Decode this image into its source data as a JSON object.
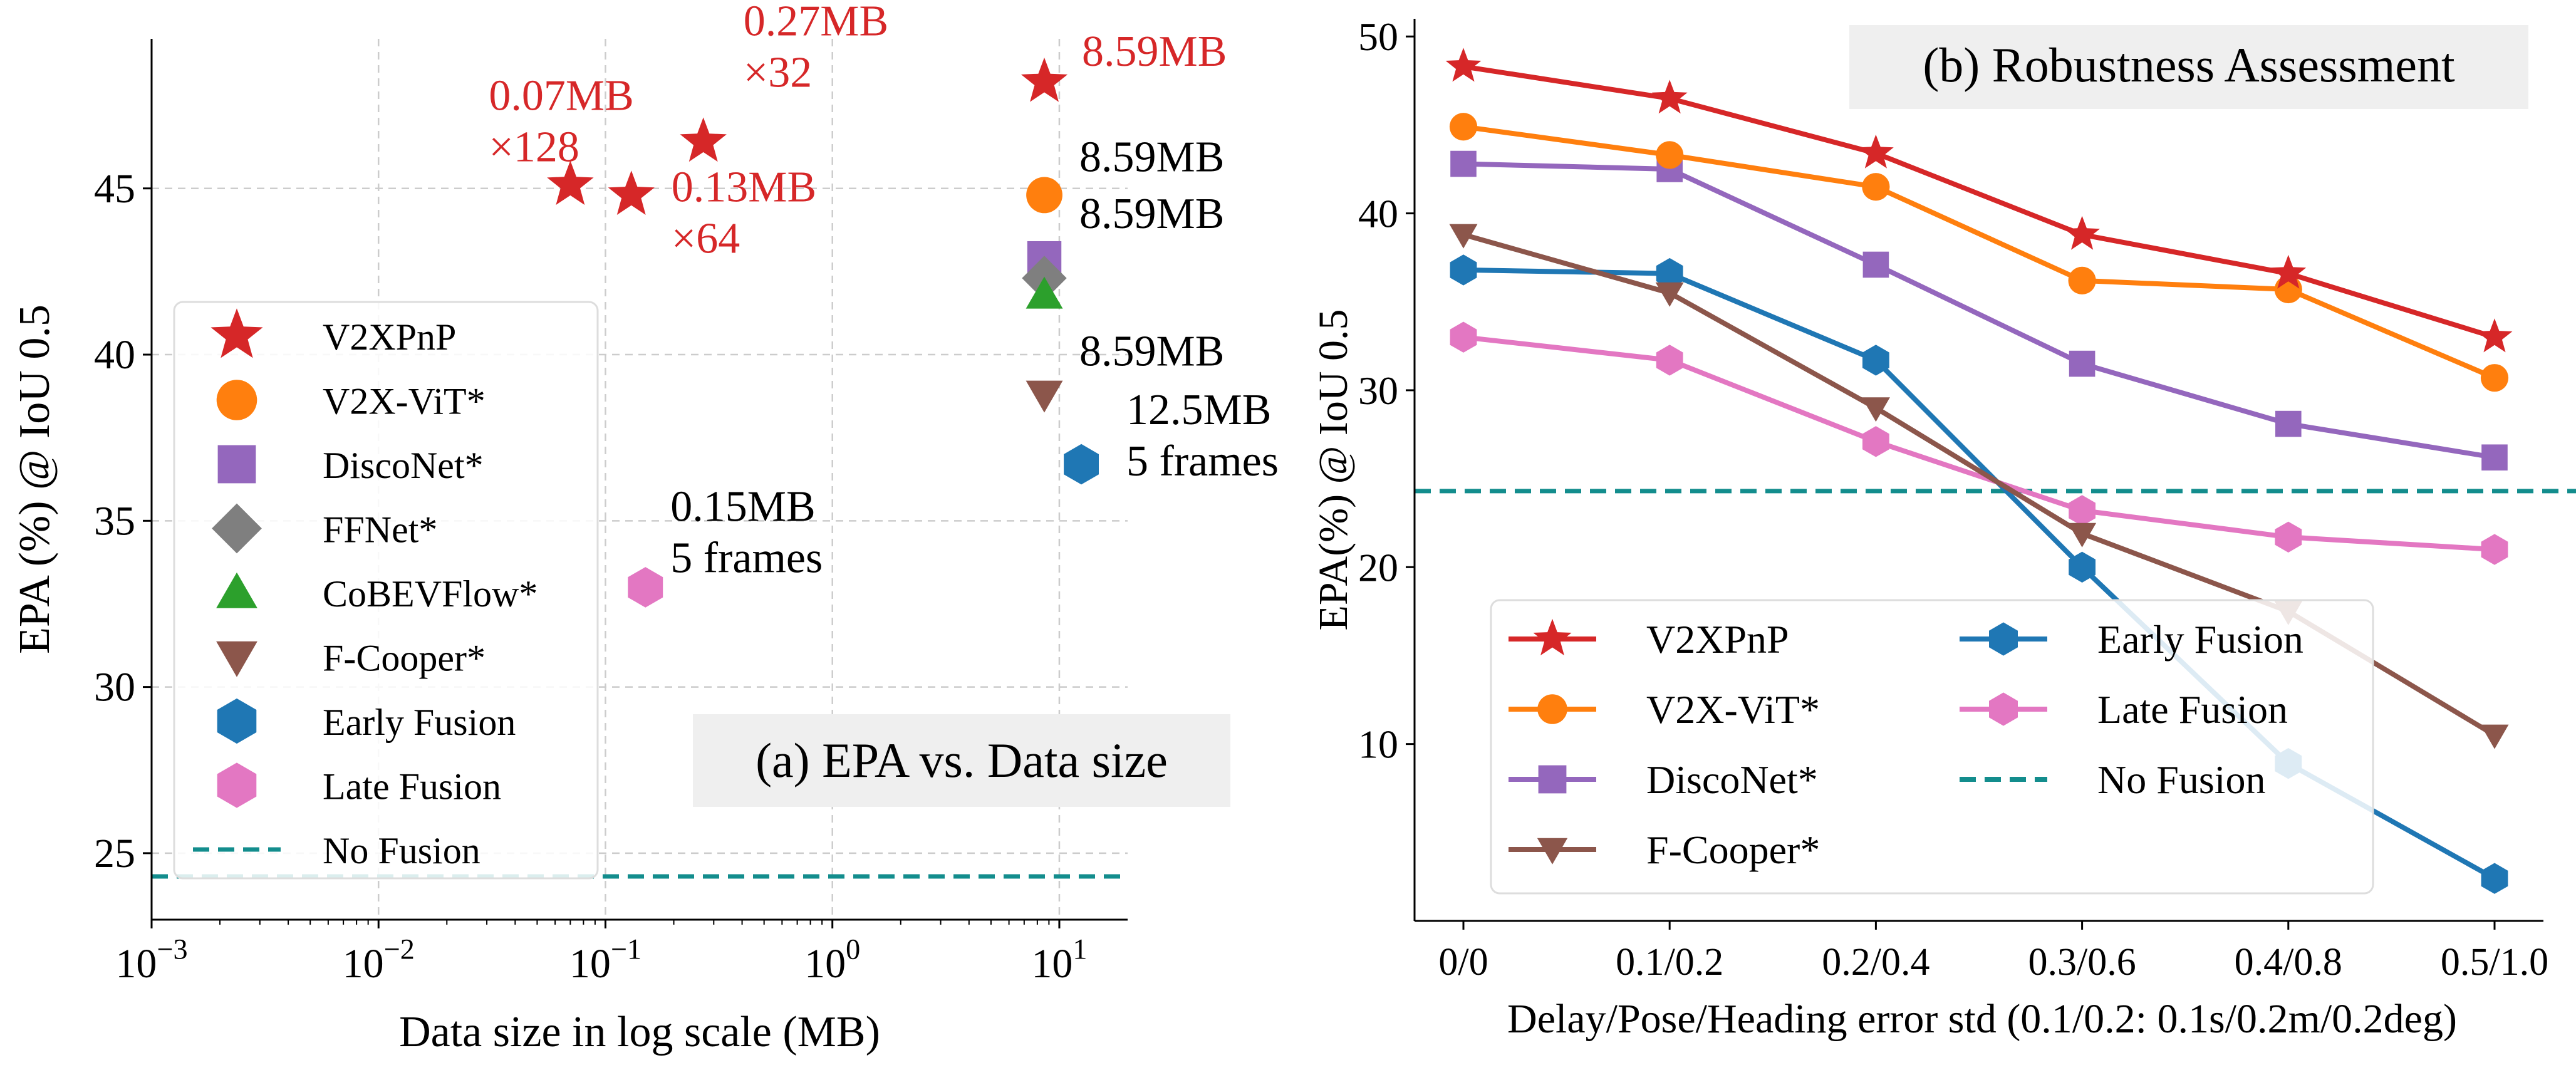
{
  "chart_data": [
    {
      "type": "scatter",
      "title": "(a) EPA vs. Data size",
      "xlabel": "Data size in log scale (MB)",
      "ylabel": "EPA (%) @ IoU 0.5",
      "xscale": "log",
      "xlim": [
        0.001,
        20
      ],
      "ylim": [
        23,
        49.5
      ],
      "x_ticks": [
        {
          "value": 0.001,
          "base": "10",
          "exp": "−3"
        },
        {
          "value": 0.01,
          "base": "10",
          "exp": "−2"
        },
        {
          "value": 0.1,
          "base": "10",
          "exp": "−1"
        },
        {
          "value": 1,
          "base": "10",
          "exp": "0"
        },
        {
          "value": 10,
          "base": "10",
          "exp": "1"
        }
      ],
      "y_ticks": [
        25,
        30,
        35,
        40,
        45
      ],
      "grid": true,
      "legend_position": "left",
      "series": [
        {
          "name": "V2XPnP",
          "marker": "star",
          "color": "#d62728",
          "points": [
            {
              "x": 0.07,
              "y": 45.1,
              "label": [
                "0.07MB",
                "×128"
              ]
            },
            {
              "x": 0.13,
              "y": 44.8,
              "label": [
                "0.13MB",
                "×64"
              ]
            },
            {
              "x": 0.27,
              "y": 46.4,
              "label": [
                "0.27MB",
                "×32"
              ]
            },
            {
              "x": 8.59,
              "y": 48.2,
              "label": [
                "8.59MB"
              ]
            }
          ]
        },
        {
          "name": "V2X-ViT*",
          "marker": "circle",
          "color": "#ff7f0e",
          "points": [
            {
              "x": 8.59,
              "y": 44.8,
              "label": [
                "8.59MB"
              ]
            }
          ]
        },
        {
          "name": "DiscoNet*",
          "marker": "square",
          "color": "#9467bd",
          "points": [
            {
              "x": 8.59,
              "y": 42.9,
              "label": [
                "8.59MB"
              ]
            }
          ]
        },
        {
          "name": "FFNet*",
          "marker": "diamond",
          "color": "#7f7f7f",
          "points": [
            {
              "x": 8.59,
              "y": 42.3
            }
          ]
        },
        {
          "name": "CoBEVFlow*",
          "marker": "triangle-up",
          "color": "#2ca02c",
          "points": [
            {
              "x": 8.59,
              "y": 41.8
            }
          ]
        },
        {
          "name": "F-Cooper*",
          "marker": "triangle-down",
          "color": "#8c564b",
          "points": [
            {
              "x": 8.59,
              "y": 38.8,
              "label": [
                "8.59MB"
              ]
            }
          ]
        },
        {
          "name": "Early Fusion",
          "marker": "hexagon",
          "color": "#1f77b4",
          "points": [
            {
              "x": 12.5,
              "y": 36.7,
              "label": [
                "12.5MB",
                "5 frames"
              ]
            }
          ]
        },
        {
          "name": "Late Fusion",
          "marker": "hexagon",
          "color": "#e377c2",
          "points": [
            {
              "x": 0.15,
              "y": 33.0,
              "label": [
                "0.15MB",
                "5 frames"
              ]
            }
          ]
        },
        {
          "name": "No Fusion",
          "marker": "dashed-line",
          "color": "#138d8d",
          "hline": 24.3
        }
      ]
    },
    {
      "type": "line",
      "title": "(b) Robustness Assessment",
      "xlabel": "Delay/Pose/Heading error std (0.1/0.2: 0.1s/0.2m/0.2deg)",
      "ylabel": "EPA(%) @ IoU 0.5",
      "categories": [
        "0/0",
        "0.1/0.2",
        "0.2/0.4",
        "0.3/0.6",
        "0.4/0.8",
        "0.5/1.0"
      ],
      "ylim": [
        0,
        51
      ],
      "y_ticks": [
        10,
        20,
        30,
        40,
        50
      ],
      "grid": false,
      "legend_position": "bottom-left",
      "series": [
        {
          "name": "V2XPnP",
          "marker": "star",
          "color": "#d62728",
          "values": [
            48.3,
            46.5,
            43.4,
            38.8,
            36.6,
            33.0
          ]
        },
        {
          "name": "V2X-ViT*",
          "marker": "circle",
          "color": "#ff7f0e",
          "values": [
            44.9,
            43.3,
            41.5,
            36.2,
            35.7,
            30.7
          ]
        },
        {
          "name": "DiscoNet*",
          "marker": "square",
          "color": "#9467bd",
          "values": [
            42.8,
            42.5,
            37.1,
            31.5,
            28.1,
            26.2
          ]
        },
        {
          "name": "F-Cooper*",
          "marker": "triangle-down",
          "color": "#8c564b",
          "values": [
            38.8,
            35.5,
            29.0,
            21.9,
            17.5,
            10.5
          ]
        },
        {
          "name": "Early Fusion",
          "marker": "hexagon",
          "color": "#1f77b4",
          "values": [
            36.8,
            36.6,
            31.7,
            20.0,
            8.9,
            2.4
          ]
        },
        {
          "name": "Late Fusion",
          "marker": "hexagon",
          "color": "#e377c2",
          "values": [
            33.0,
            31.7,
            27.1,
            23.2,
            21.7,
            21.0
          ]
        },
        {
          "name": "No Fusion",
          "marker": "dashed-line",
          "color": "#138d8d",
          "hline": 24.3
        }
      ]
    }
  ]
}
